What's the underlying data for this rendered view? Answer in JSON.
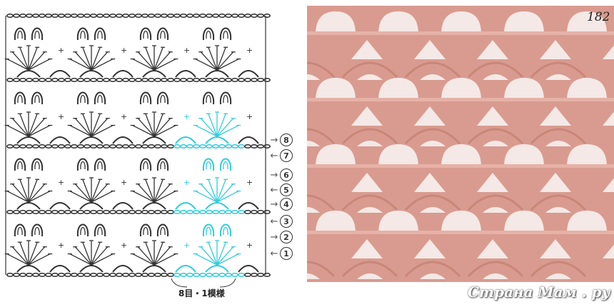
{
  "diagram": {
    "rows": [
      {
        "number": "1",
        "direction": "left"
      },
      {
        "number": "2",
        "direction": "right"
      },
      {
        "number": "3",
        "direction": "left"
      },
      {
        "number": "4",
        "direction": "right"
      },
      {
        "number": "5",
        "direction": "left"
      },
      {
        "number": "6",
        "direction": "right"
      },
      {
        "number": "7",
        "direction": "left"
      },
      {
        "number": "8",
        "direction": "right"
      }
    ],
    "repeat_label": "8目・1模様",
    "stitch_color": "#333333",
    "highlight_color": "#33ccdd"
  },
  "photo": {
    "yarn_color": "#d99b90",
    "pattern_number": "182"
  },
  "watermark": "Страна Мам . ру"
}
